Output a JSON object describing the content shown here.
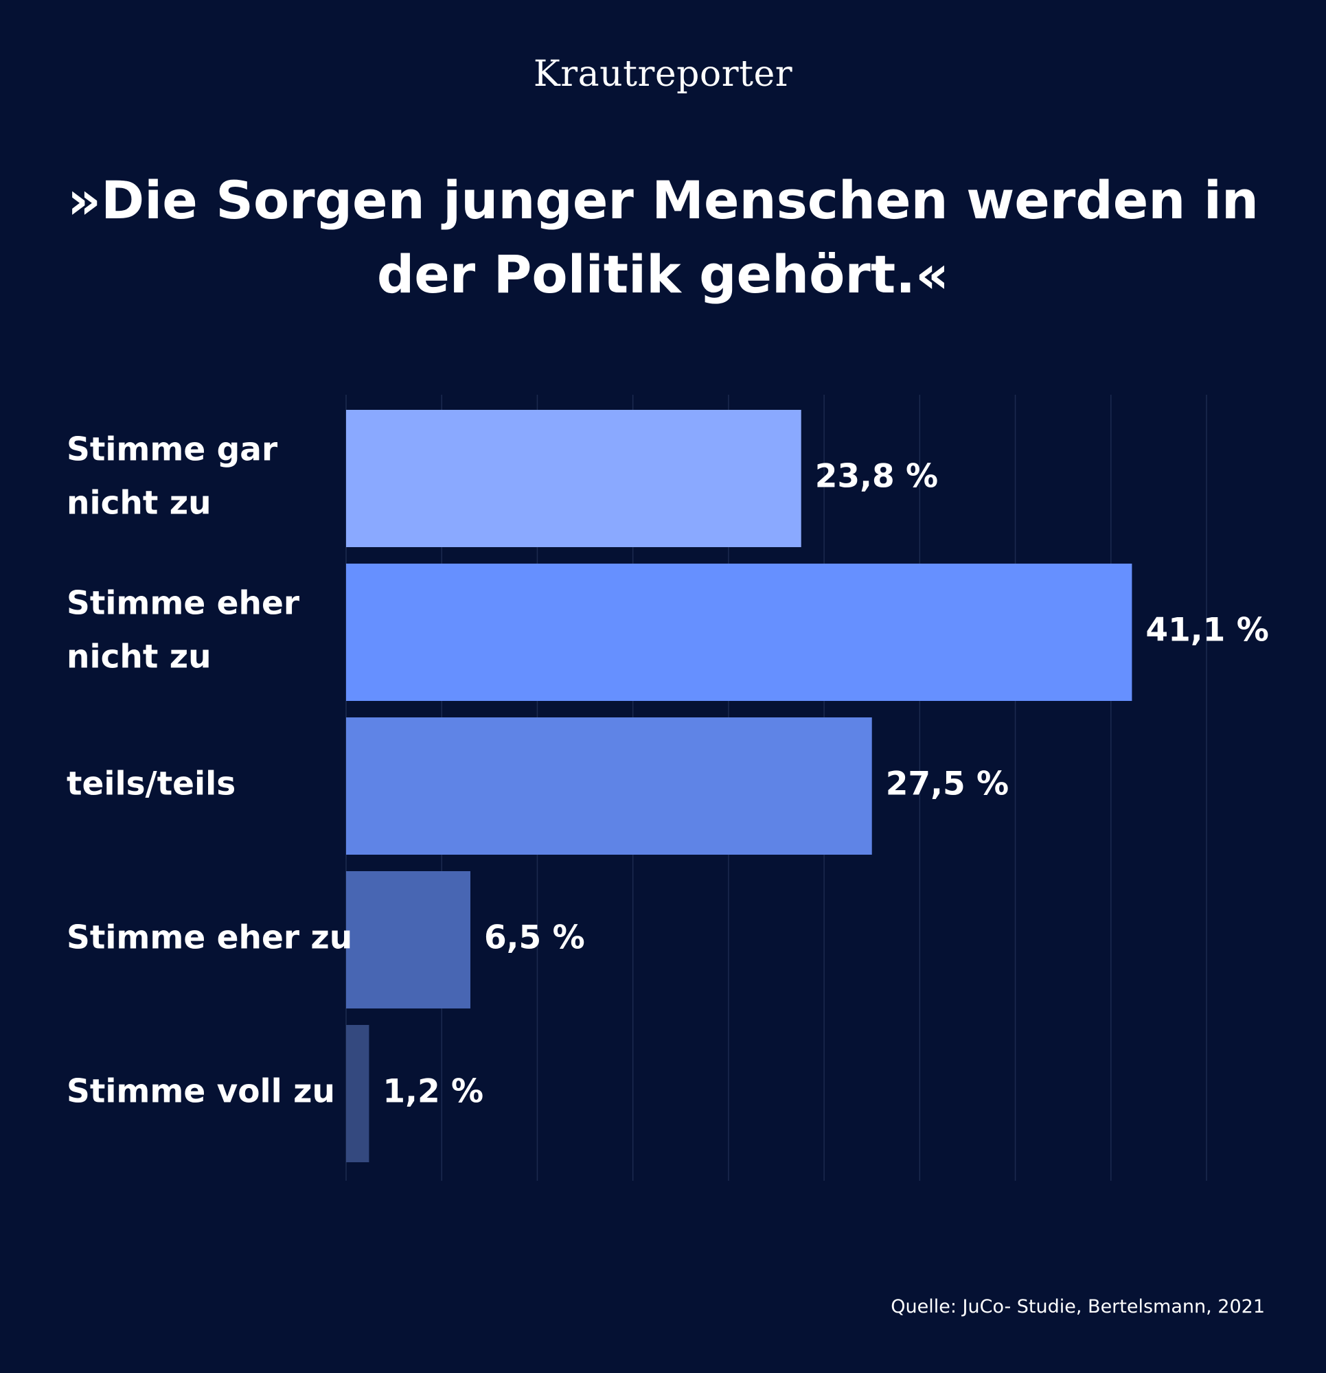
{
  "brand": "Krautreporter",
  "title": "»Die Sorgen junger Menschen werden in der Politik gehört.«",
  "source": "Quelle: JuCo- Studie, Bertelsmann, 2021",
  "chart_data": {
    "type": "bar",
    "orientation": "horizontal",
    "title": "»Die Sorgen junger Menschen werden in der Politik gehört.«",
    "categories": [
      [
        "Stimme gar",
        "nicht zu"
      ],
      [
        "Stimme eher",
        "nicht zu"
      ],
      [
        "teils/teils"
      ],
      [
        "Stimme eher zu"
      ],
      [
        "Stimme voll zu"
      ]
    ],
    "values": [
      23.8,
      41.1,
      27.5,
      6.5,
      1.2
    ],
    "value_labels": [
      "23,8 %",
      "41,1 %",
      "27,5 %",
      "6,5 %",
      "1,2 %"
    ],
    "bar_colors": [
      "#8AA9FF",
      "#6690FF",
      "#5F84E6",
      "#4866B3",
      "#34497F"
    ],
    "xlim": [
      0,
      45
    ],
    "grid_step": 5,
    "grid": true,
    "xlabel": "",
    "ylabel": "",
    "colors": {
      "background": "#051133",
      "grid": "#1C2A4F",
      "text": "#FFFFFF"
    }
  }
}
